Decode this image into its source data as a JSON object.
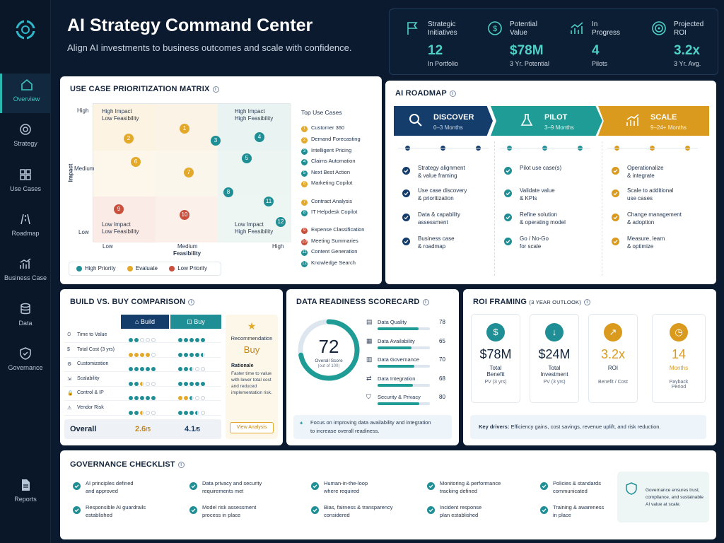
{
  "header": {
    "title": "AI Strategy Command Center",
    "subtitle": "Align AI investments to business outcomes and scale with confidence."
  },
  "kpis": [
    {
      "label1": "Strategic",
      "label2": "Initiatives",
      "value": "12",
      "sub": "In Portfolio",
      "icon": "flag-icon"
    },
    {
      "label1": "Potential",
      "label2": "Value",
      "value": "$78M",
      "sub": "3 Yr. Potential",
      "icon": "dollar-icon"
    },
    {
      "label1": "In",
      "label2": "Progress",
      "value": "4",
      "sub": "Pilots",
      "icon": "trend-icon"
    },
    {
      "label1": "Projected",
      "label2": "ROI",
      "value": "3.2x",
      "sub": "3 Yr. Avg.",
      "icon": "target-icon"
    }
  ],
  "nav": [
    {
      "label": "Overview",
      "icon": "home-icon",
      "active": true
    },
    {
      "label": "Strategy",
      "icon": "target-icon"
    },
    {
      "label": "Use Cases",
      "icon": "grid-icon"
    },
    {
      "label": "Roadmap",
      "icon": "road-icon"
    },
    {
      "label": "Business Case",
      "icon": "chart-icon"
    },
    {
      "label": "Data",
      "icon": "database-icon"
    },
    {
      "label": "Governance",
      "icon": "shield-icon"
    },
    {
      "label": "Reports",
      "icon": "report-icon"
    }
  ],
  "matrix": {
    "title": "USE CASE PRIORITIZATION MATRIX",
    "y_label": "Impact",
    "x_label": "Feasibility",
    "y_ticks": [
      "High",
      "Medium",
      "Low"
    ],
    "x_ticks": [
      "Low",
      "Medium",
      "High"
    ],
    "quadrants": {
      "tl": [
        "High Impact",
        "Low Feasibility"
      ],
      "tr": [
        "High Impact",
        "High Feasibility"
      ],
      "bl": [
        "Low Impact",
        "Low Feasibility"
      ],
      "br": [
        "Low Impact",
        "High Feasibility"
      ]
    },
    "legend": [
      "High Priority",
      "Evaluate",
      "Low Priority"
    ],
    "top_title": "Top Use Cases",
    "use_cases": [
      "Customer 360",
      "Demand Forecasting",
      "Intelligent Pricing",
      "Claims Automation",
      "Next Best Action",
      "Marketing Copilot",
      "Contract Analysis",
      "IT Helpdesk Copilot",
      "Expense Classification",
      "Meeting Summaries",
      "Content Generation",
      "Knowledge Search"
    ]
  },
  "roadmap": {
    "title": "AI ROADMAP",
    "phases": [
      {
        "name": "DISCOVER",
        "range": "0–3 Months",
        "items": [
          [
            "Strategy alignment",
            "& value framing"
          ],
          [
            "Use case discovery",
            "& prioritization"
          ],
          [
            "Data & capability",
            "assessment"
          ],
          [
            "Business case",
            "& roadmap"
          ]
        ]
      },
      {
        "name": "PILOT",
        "range": "3–9 Months",
        "items": [
          [
            "Pilot use case(s)",
            ""
          ],
          [
            "Validate value",
            "& KPIs"
          ],
          [
            "Refine solution",
            "& operating model"
          ],
          [
            "Go / No-Go",
            "for scale"
          ]
        ]
      },
      {
        "name": "SCALE",
        "range": "9–24+ Months",
        "items": [
          [
            "Operationalize",
            "& integrate"
          ],
          [
            "Scale to additional",
            "use cases"
          ],
          [
            "Change management",
            "& adoption"
          ],
          [
            "Measure, learn",
            "& optimize"
          ]
        ]
      }
    ]
  },
  "buildbuy": {
    "title": "BUILD VS. BUY COMPARISON",
    "build": "Build",
    "buy": "Buy",
    "rows": [
      "Time to Value",
      "Total Cost (3 yrs)",
      "Customization",
      "Scalability",
      "Control & IP",
      "Vendor Risk"
    ],
    "overall": "Overall",
    "build_score": "2.6",
    "buy_score": "4.1",
    "denom": "/5",
    "rec_title": "Recommendation",
    "rec": "Buy",
    "rationale_title": "Rationale",
    "rationale": [
      "Faster time to value",
      "with lower total cost",
      "and reduced",
      "implementation risk."
    ],
    "view": "View Analysis"
  },
  "readiness": {
    "title": "DATA READINESS SCORECARD",
    "score": "72",
    "score_label": "Overall Score",
    "score_sub": "(out of 100)",
    "items": [
      {
        "name": "Data Quality",
        "value": 78
      },
      {
        "name": "Data Availability",
        "value": 65
      },
      {
        "name": "Data Governance",
        "value": 70
      },
      {
        "name": "Data Integration",
        "value": 68
      },
      {
        "name": "Security & Privacy",
        "value": 80
      }
    ],
    "focus": [
      "Focus on improving data availability and integration",
      "to increase overall readiness."
    ]
  },
  "roi": {
    "title": "ROI FRAMING",
    "title_sub": "(3 YEAR OUTLOOK)",
    "cards": [
      {
        "value": "$78M",
        "l1": "Total",
        "l2": "Benefit",
        "sub": "PV (3 yrs)"
      },
      {
        "value": "$24M",
        "l1": "Total",
        "l2": "Investment",
        "sub": "PV (3 yrs)"
      },
      {
        "value": "3.2x",
        "l1": "ROI",
        "l2": "",
        "sub": "Benefit / Cost"
      },
      {
        "value": "14",
        "l1": "Months",
        "l2": "",
        "sub": "Payback",
        "sub2": "Period"
      }
    ],
    "drivers_label": "Key drivers:",
    "drivers": "Efficiency gains, cost savings, revenue uplift, and risk reduction."
  },
  "governance": {
    "title": "GOVERNANCE CHECKLIST",
    "items": [
      [
        "AI principles defined",
        "and approved"
      ],
      [
        "Data privacy and security",
        "requirements met"
      ],
      [
        "Human-in-the-loop",
        "where required"
      ],
      [
        "Monitoring & performance",
        "tracking defined"
      ],
      [
        "Policies & standards",
        "communicated"
      ],
      [
        "Responsible AI guardrails",
        "established"
      ],
      [
        "Model risk assessment",
        "process in place"
      ],
      [
        "Bias, fairness & transparency",
        "considered"
      ],
      [
        "Incident response",
        "plan established"
      ],
      [
        "Training & awareness",
        "in place"
      ]
    ],
    "note": [
      "Governance ensures trust,",
      "compliance, and sustainable",
      "AI value at scale."
    ]
  }
}
